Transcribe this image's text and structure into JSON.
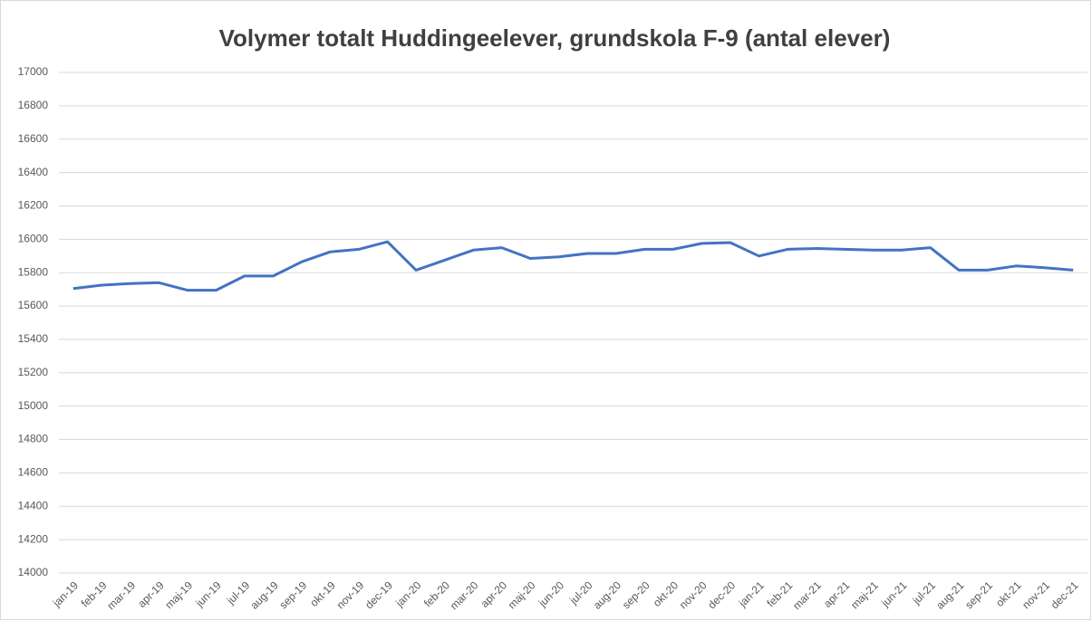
{
  "chart_data": {
    "type": "line",
    "title": "Volymer totalt Huddingeelever, grundskola F-9 (antal elever)",
    "categories": [
      "jan-19",
      "feb-19",
      "mar-19",
      "apr-19",
      "maj-19",
      "jun-19",
      "jul-19",
      "aug-19",
      "sep-19",
      "okt-19",
      "nov-19",
      "dec-19",
      "jan-20",
      "feb-20",
      "mar-20",
      "apr-20",
      "maj-20",
      "jun-20",
      "jul-20",
      "aug-20",
      "sep-20",
      "okt-20",
      "nov-20",
      "dec-20",
      "jan-21",
      "feb-21",
      "mar-21",
      "apr-21",
      "maj-21",
      "jun-21",
      "jul-21",
      "aug-21",
      "sep-21",
      "okt-21",
      "nov-21",
      "dec-21"
    ],
    "values": [
      15705,
      15725,
      15735,
      15740,
      15695,
      15695,
      15780,
      15780,
      15865,
      15925,
      15940,
      15985,
      15815,
      15875,
      15935,
      15950,
      15885,
      15895,
      15915,
      15915,
      15940,
      15940,
      15975,
      15980,
      15900,
      15940,
      15945,
      15940,
      15935,
      15935,
      15950,
      15815,
      15815,
      15840,
      15830,
      15815
    ],
    "color": "#4472c4",
    "ylim": [
      14000,
      17000
    ],
    "yticks": [
      14000,
      14200,
      14400,
      14600,
      14800,
      15000,
      15200,
      15400,
      15600,
      15800,
      16000,
      16200,
      16400,
      16600,
      16800,
      17000
    ],
    "grid": true
  }
}
